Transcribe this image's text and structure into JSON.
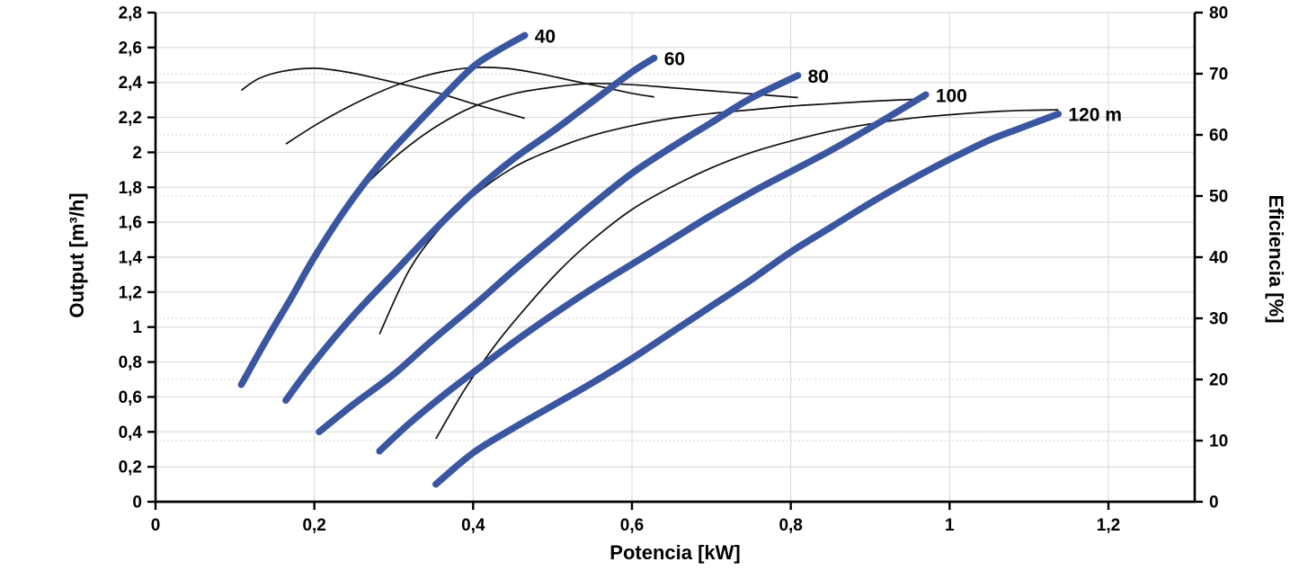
{
  "chart_data": {
    "type": "line",
    "title": "",
    "xlabel": "Potencia [kW]",
    "ylabel_left": "Output [m³/h]",
    "ylabel_right": "Eficiencia [%]",
    "xlim": [
      0,
      1.309
    ],
    "ylim_left": [
      0,
      2.8
    ],
    "ylim_right": [
      0,
      80
    ],
    "x_ticks": [
      {
        "v": 0,
        "label": "0"
      },
      {
        "v": 0.2,
        "label": "0,2"
      },
      {
        "v": 0.4,
        "label": "0,4"
      },
      {
        "v": 0.6,
        "label": "0,6"
      },
      {
        "v": 0.8,
        "label": "0,8"
      },
      {
        "v": 1,
        "label": "1"
      },
      {
        "v": 1.2,
        "label": "1,2"
      }
    ],
    "y_ticks_left": [
      {
        "v": 0,
        "label": "0"
      },
      {
        "v": 0.2,
        "label": "0,2"
      },
      {
        "v": 0.4,
        "label": "0,4"
      },
      {
        "v": 0.6,
        "label": "0,6"
      },
      {
        "v": 0.8,
        "label": "0,8"
      },
      {
        "v": 1,
        "label": "1"
      },
      {
        "v": 1.2,
        "label": "1,2"
      },
      {
        "v": 1.4,
        "label": "1,4"
      },
      {
        "v": 1.6,
        "label": "1,6"
      },
      {
        "v": 1.8,
        "label": "1,8"
      },
      {
        "v": 2,
        "label": "2"
      },
      {
        "v": 2.2,
        "label": "2,2"
      },
      {
        "v": 2.4,
        "label": "2,4"
      },
      {
        "v": 2.6,
        "label": "2,6"
      },
      {
        "v": 2.8,
        "label": "2,8"
      }
    ],
    "y_ticks_right": [
      {
        "v": 0,
        "label": "0"
      },
      {
        "v": 10,
        "label": "10"
      },
      {
        "v": 20,
        "label": "20"
      },
      {
        "v": 30,
        "label": "30"
      },
      {
        "v": 40,
        "label": "40"
      },
      {
        "v": 50,
        "label": "50"
      },
      {
        "v": 60,
        "label": "60"
      },
      {
        "v": 70,
        "label": "70"
      },
      {
        "v": 80,
        "label": "80"
      }
    ],
    "grid": {
      "solid_horizontal": "left-axis ticks",
      "solid_vertical": "x-axis ticks",
      "dotted_horizontal": "right-axis ticks",
      "legend": "none"
    },
    "series": [
      {
        "id": "head-40",
        "family": "pump",
        "axis": "left",
        "head_m": 40,
        "label": "40",
        "points": [
          [
            0.108,
            0.67
          ],
          [
            0.14,
            0.93
          ],
          [
            0.17,
            1.16
          ],
          [
            0.2,
            1.4
          ],
          [
            0.24,
            1.68
          ],
          [
            0.28,
            1.92
          ],
          [
            0.32,
            2.12
          ],
          [
            0.36,
            2.31
          ],
          [
            0.4,
            2.49
          ],
          [
            0.43,
            2.58
          ],
          [
            0.465,
            2.67
          ]
        ]
      },
      {
        "id": "head-60",
        "family": "pump",
        "axis": "left",
        "head_m": 60,
        "label": "60",
        "points": [
          [
            0.164,
            0.58
          ],
          [
            0.2,
            0.8
          ],
          [
            0.25,
            1.07
          ],
          [
            0.3,
            1.31
          ],
          [
            0.35,
            1.55
          ],
          [
            0.4,
            1.77
          ],
          [
            0.45,
            1.96
          ],
          [
            0.5,
            2.12
          ],
          [
            0.55,
            2.29
          ],
          [
            0.6,
            2.46
          ],
          [
            0.628,
            2.54
          ]
        ]
      },
      {
        "id": "head-80",
        "family": "pump",
        "axis": "left",
        "head_m": 80,
        "label": "80",
        "points": [
          [
            0.206,
            0.4
          ],
          [
            0.25,
            0.56
          ],
          [
            0.3,
            0.73
          ],
          [
            0.35,
            0.93
          ],
          [
            0.4,
            1.12
          ],
          [
            0.45,
            1.32
          ],
          [
            0.5,
            1.51
          ],
          [
            0.55,
            1.7
          ],
          [
            0.6,
            1.88
          ],
          [
            0.65,
            2.03
          ],
          [
            0.7,
            2.17
          ],
          [
            0.75,
            2.31
          ],
          [
            0.809,
            2.44
          ]
        ]
      },
      {
        "id": "head-100",
        "family": "pump",
        "axis": "left",
        "head_m": 100,
        "label": "100",
        "points": [
          [
            0.282,
            0.29
          ],
          [
            0.32,
            0.45
          ],
          [
            0.36,
            0.6
          ],
          [
            0.4,
            0.74
          ],
          [
            0.45,
            0.91
          ],
          [
            0.5,
            1.07
          ],
          [
            0.55,
            1.22
          ],
          [
            0.6,
            1.36
          ],
          [
            0.65,
            1.5
          ],
          [
            0.7,
            1.64
          ],
          [
            0.75,
            1.77
          ],
          [
            0.8,
            1.89
          ],
          [
            0.85,
            2.01
          ],
          [
            0.9,
            2.14
          ],
          [
            0.97,
            2.33
          ]
        ]
      },
      {
        "id": "head-120",
        "family": "pump",
        "axis": "left",
        "head_m": 120,
        "label": "120 m",
        "points": [
          [
            0.353,
            0.1
          ],
          [
            0.4,
            0.28
          ],
          [
            0.45,
            0.42
          ],
          [
            0.5,
            0.55
          ],
          [
            0.55,
            0.68
          ],
          [
            0.6,
            0.82
          ],
          [
            0.65,
            0.97
          ],
          [
            0.7,
            1.12
          ],
          [
            0.75,
            1.27
          ],
          [
            0.8,
            1.43
          ],
          [
            0.85,
            1.57
          ],
          [
            0.9,
            1.71
          ],
          [
            0.95,
            1.84
          ],
          [
            1.0,
            1.96
          ],
          [
            1.05,
            2.07
          ],
          [
            1.09,
            2.14
          ],
          [
            1.137,
            2.22
          ]
        ]
      },
      {
        "id": "eff-40",
        "family": "efficiency",
        "axis": "right",
        "head_m": 40,
        "label": "",
        "points": [
          [
            0.108,
            67.3
          ],
          [
            0.13,
            69.2
          ],
          [
            0.16,
            70.4
          ],
          [
            0.2,
            70.9
          ],
          [
            0.24,
            70.3
          ],
          [
            0.28,
            69.2
          ],
          [
            0.32,
            68.0
          ],
          [
            0.36,
            66.7
          ],
          [
            0.4,
            65.1
          ],
          [
            0.43,
            64.0
          ],
          [
            0.465,
            62.7
          ]
        ]
      },
      {
        "id": "eff-60",
        "family": "efficiency",
        "axis": "right",
        "head_m": 60,
        "label": "",
        "points": [
          [
            0.164,
            58.5
          ],
          [
            0.2,
            61.5
          ],
          [
            0.24,
            64.4
          ],
          [
            0.28,
            66.9
          ],
          [
            0.32,
            68.9
          ],
          [
            0.36,
            70.3
          ],
          [
            0.4,
            71.0
          ],
          [
            0.44,
            70.9
          ],
          [
            0.48,
            70.1
          ],
          [
            0.52,
            69.0
          ],
          [
            0.56,
            67.9
          ],
          [
            0.6,
            66.8
          ],
          [
            0.628,
            66.2
          ]
        ]
      },
      {
        "id": "eff-80",
        "family": "efficiency",
        "axis": "right",
        "head_m": 80,
        "label": "",
        "points": [
          [
            0.206,
            41.6
          ],
          [
            0.24,
            48.3
          ],
          [
            0.28,
            53.8
          ],
          [
            0.32,
            58.3
          ],
          [
            0.36,
            61.9
          ],
          [
            0.4,
            64.6
          ],
          [
            0.45,
            66.7
          ],
          [
            0.5,
            67.8
          ],
          [
            0.55,
            68.4
          ],
          [
            0.6,
            68.2
          ],
          [
            0.65,
            67.7
          ],
          [
            0.7,
            67.2
          ],
          [
            0.75,
            66.7
          ],
          [
            0.809,
            66.1
          ]
        ]
      },
      {
        "id": "eff-100",
        "family": "efficiency",
        "axis": "right",
        "head_m": 100,
        "label": "",
        "points": [
          [
            0.282,
            27.4
          ],
          [
            0.32,
            38.0
          ],
          [
            0.36,
            45.0
          ],
          [
            0.4,
            50.0
          ],
          [
            0.45,
            54.6
          ],
          [
            0.5,
            57.6
          ],
          [
            0.55,
            59.9
          ],
          [
            0.6,
            61.5
          ],
          [
            0.65,
            62.7
          ],
          [
            0.7,
            63.5
          ],
          [
            0.75,
            64.1
          ],
          [
            0.8,
            64.7
          ],
          [
            0.85,
            65.1
          ],
          [
            0.9,
            65.5
          ],
          [
            0.97,
            65.9
          ]
        ]
      },
      {
        "id": "eff-120",
        "family": "efficiency",
        "axis": "right",
        "head_m": 120,
        "label": "",
        "points": [
          [
            0.353,
            10.3
          ],
          [
            0.39,
            18.5
          ],
          [
            0.43,
            26.0
          ],
          [
            0.47,
            32.3
          ],
          [
            0.51,
            38.0
          ],
          [
            0.55,
            42.8
          ],
          [
            0.6,
            47.8
          ],
          [
            0.65,
            51.5
          ],
          [
            0.7,
            54.6
          ],
          [
            0.75,
            57.1
          ],
          [
            0.8,
            59.0
          ],
          [
            0.85,
            60.6
          ],
          [
            0.9,
            61.8
          ],
          [
            0.95,
            62.7
          ],
          [
            1.0,
            63.3
          ],
          [
            1.07,
            63.9
          ],
          [
            1.137,
            64.1
          ]
        ]
      }
    ]
  },
  "colors": {
    "pump_curve": "#3A56A0",
    "efficiency_curve": "#111111",
    "axis": "#000000",
    "grid_solid": "#DCDCDC",
    "grid_dotted": "#D2D2D2",
    "background": "#FFFFFF",
    "label_text": "#000000"
  }
}
